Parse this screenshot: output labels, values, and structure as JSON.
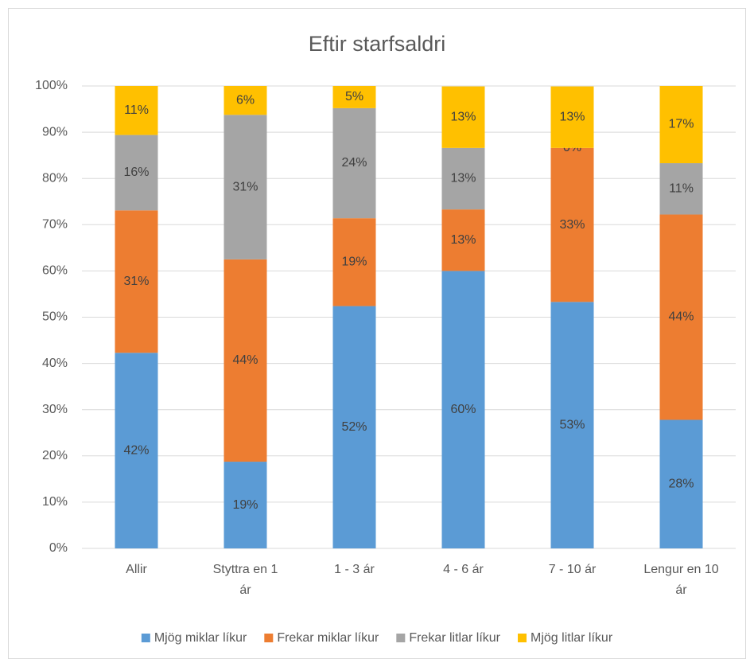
{
  "chart_data": {
    "type": "stacked_bar",
    "title": "Eftir starfsaldri",
    "categories": [
      "Allir",
      "Styttra en 1 ár",
      "1 - 3 ár",
      "4 - 6 ár",
      "7 - 10 ár",
      "Lengur en 10 ár"
    ],
    "series": [
      {
        "name": "Mjög miklar líkur",
        "color": "#5b9bd5",
        "values": [
          42.3,
          18.75,
          52.4,
          60.0,
          53.3,
          27.8
        ],
        "value_labels": [
          "42%",
          "19%",
          "52%",
          "60%",
          "53%",
          "28%"
        ]
      },
      {
        "name": "Frekar miklar líkur",
        "color": "#ed7d31",
        "values": [
          30.8,
          43.75,
          19.0,
          13.3,
          33.3,
          44.4
        ],
        "value_labels": [
          "31%",
          "44%",
          "19%",
          "13%",
          "33%",
          "44%"
        ]
      },
      {
        "name": "Frekar litlar líkur",
        "color": "#a5a5a5",
        "values": [
          16.3,
          31.25,
          23.8,
          13.3,
          0,
          11.1
        ],
        "value_labels": [
          "16%",
          "31%",
          "24%",
          "13%",
          "0%",
          "11%"
        ]
      },
      {
        "name": "Mjög litlar líkur",
        "color": "#ffc000",
        "values": [
          10.6,
          6.25,
          4.8,
          13.3,
          13.3,
          16.7
        ],
        "value_labels": [
          "11%",
          "6%",
          "5%",
          "13%",
          "13%",
          "17%"
        ]
      }
    ],
    "ylim": [
      0,
      100
    ],
    "yticks": [
      {
        "value": 0,
        "label": "0%"
      },
      {
        "value": 10,
        "label": "10%"
      },
      {
        "value": 20,
        "label": "20%"
      },
      {
        "value": 30,
        "label": "30%"
      },
      {
        "value": 40,
        "label": "40%"
      },
      {
        "value": 50,
        "label": "50%"
      },
      {
        "value": 60,
        "label": "60%"
      },
      {
        "value": 70,
        "label": "70%"
      },
      {
        "value": 80,
        "label": "80%"
      },
      {
        "value": 90,
        "label": "90%"
      },
      {
        "value": 100,
        "label": "100%"
      }
    ],
    "grid": true,
    "legend": "bottom"
  }
}
